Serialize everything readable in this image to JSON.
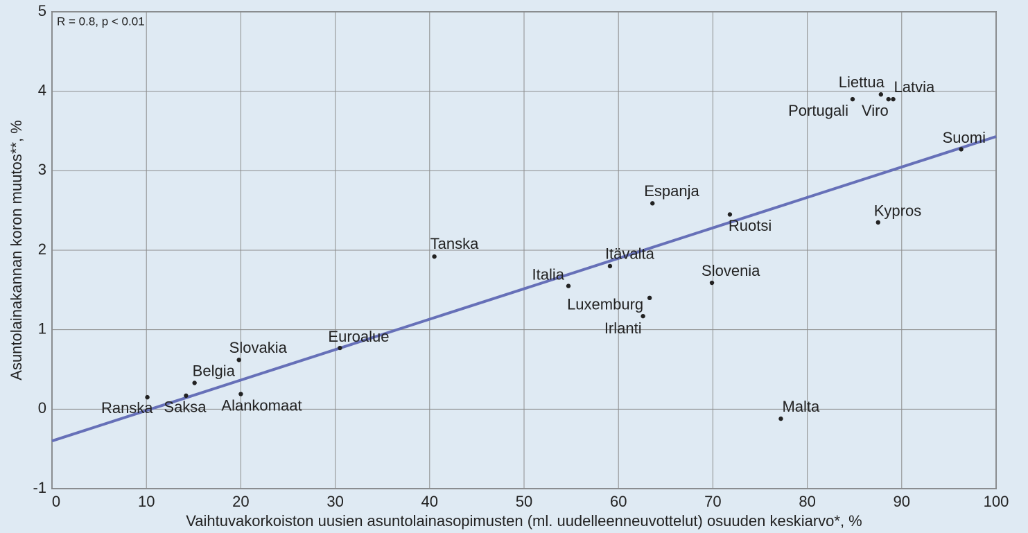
{
  "chart_data": {
    "type": "scatter",
    "annotation": "R = 0.8, p < 0.01",
    "x_label": "Vaihtuvakorkoiston uusien asuntolainasopimusten (ml. uudelleenneuvottelut) osuuden keskiarvo*, %",
    "y_label": "Asuntolainakannan koron muutos**, %",
    "labels": [
      "Ranska",
      "Saksa",
      "Belgia",
      "Slovakia",
      "Alankomaat",
      "Euroalue",
      "Tanska",
      "Italia",
      "Itävalta",
      "Luxemburg",
      "Irlanti",
      "Espanja",
      "Ruotsi",
      "Slovenia",
      "Malta",
      "Portugali",
      "Liettua",
      "Viro",
      "Latvia",
      "Kypros",
      "Suomi"
    ],
    "x": [
      10.1,
      14.2,
      15.1,
      19.8,
      20.0,
      30.5,
      40.5,
      54.7,
      59.1,
      63.3,
      62.6,
      63.6,
      71.8,
      69.9,
      77.2,
      84.8,
      87.8,
      88.6,
      89.1,
      87.5,
      96.3
    ],
    "y": [
      0.15,
      0.17,
      0.33,
      0.62,
      0.19,
      0.77,
      1.92,
      1.55,
      1.8,
      1.4,
      1.17,
      2.59,
      2.45,
      1.59,
      -0.12,
      3.9,
      3.96,
      3.9,
      3.9,
      2.35,
      3.27
    ],
    "color": "#222222",
    "trendline": {
      "x": [
        0,
        100
      ],
      "y": [
        -0.4,
        3.43
      ],
      "color": "#6670b8"
    },
    "xlim": [
      0,
      100
    ],
    "xticks": [
      0,
      10,
      20,
      30,
      40,
      50,
      60,
      70,
      80,
      90,
      100
    ],
    "ylim": [
      -1,
      5
    ],
    "yticks": [
      -1,
      0,
      1,
      2,
      3,
      4,
      5
    ],
    "grid": true
  }
}
